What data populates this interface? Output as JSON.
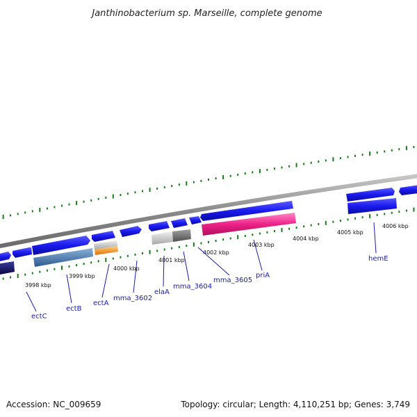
{
  "title": "Janthinobacterium sp. Marseille, complete genome",
  "footer": {
    "accession": "Accession: NC_009659",
    "stats": "Topology: circular; Length: 4,110,251 bp; Genes: 3,749"
  },
  "ticks": [
    "3998 kbp",
    "3999 kbp",
    "4000 kbp",
    "4001 kbp",
    "4002 kbp",
    "4003 kbp",
    "4004 kbp",
    "4005 kbp",
    "4006 kbp"
  ],
  "genes": [
    "ectC",
    "ectB",
    "ectA",
    "mma_3602",
    "elaA",
    "mma_3604",
    "mma_3605",
    "priA",
    "hemE"
  ],
  "colors": {
    "forward_gene": "#1a1aee",
    "dark_gene": "#0a0a66",
    "ectB": "#4a7ab0",
    "ectA": "#f08a10",
    "mma_3602_3604": "#b8b8b8",
    "priA": "#ee2288",
    "backbone": "#8a8a8a",
    "tick_marks": "#1a7a1a",
    "label_lines": "#1a1aa8"
  }
}
